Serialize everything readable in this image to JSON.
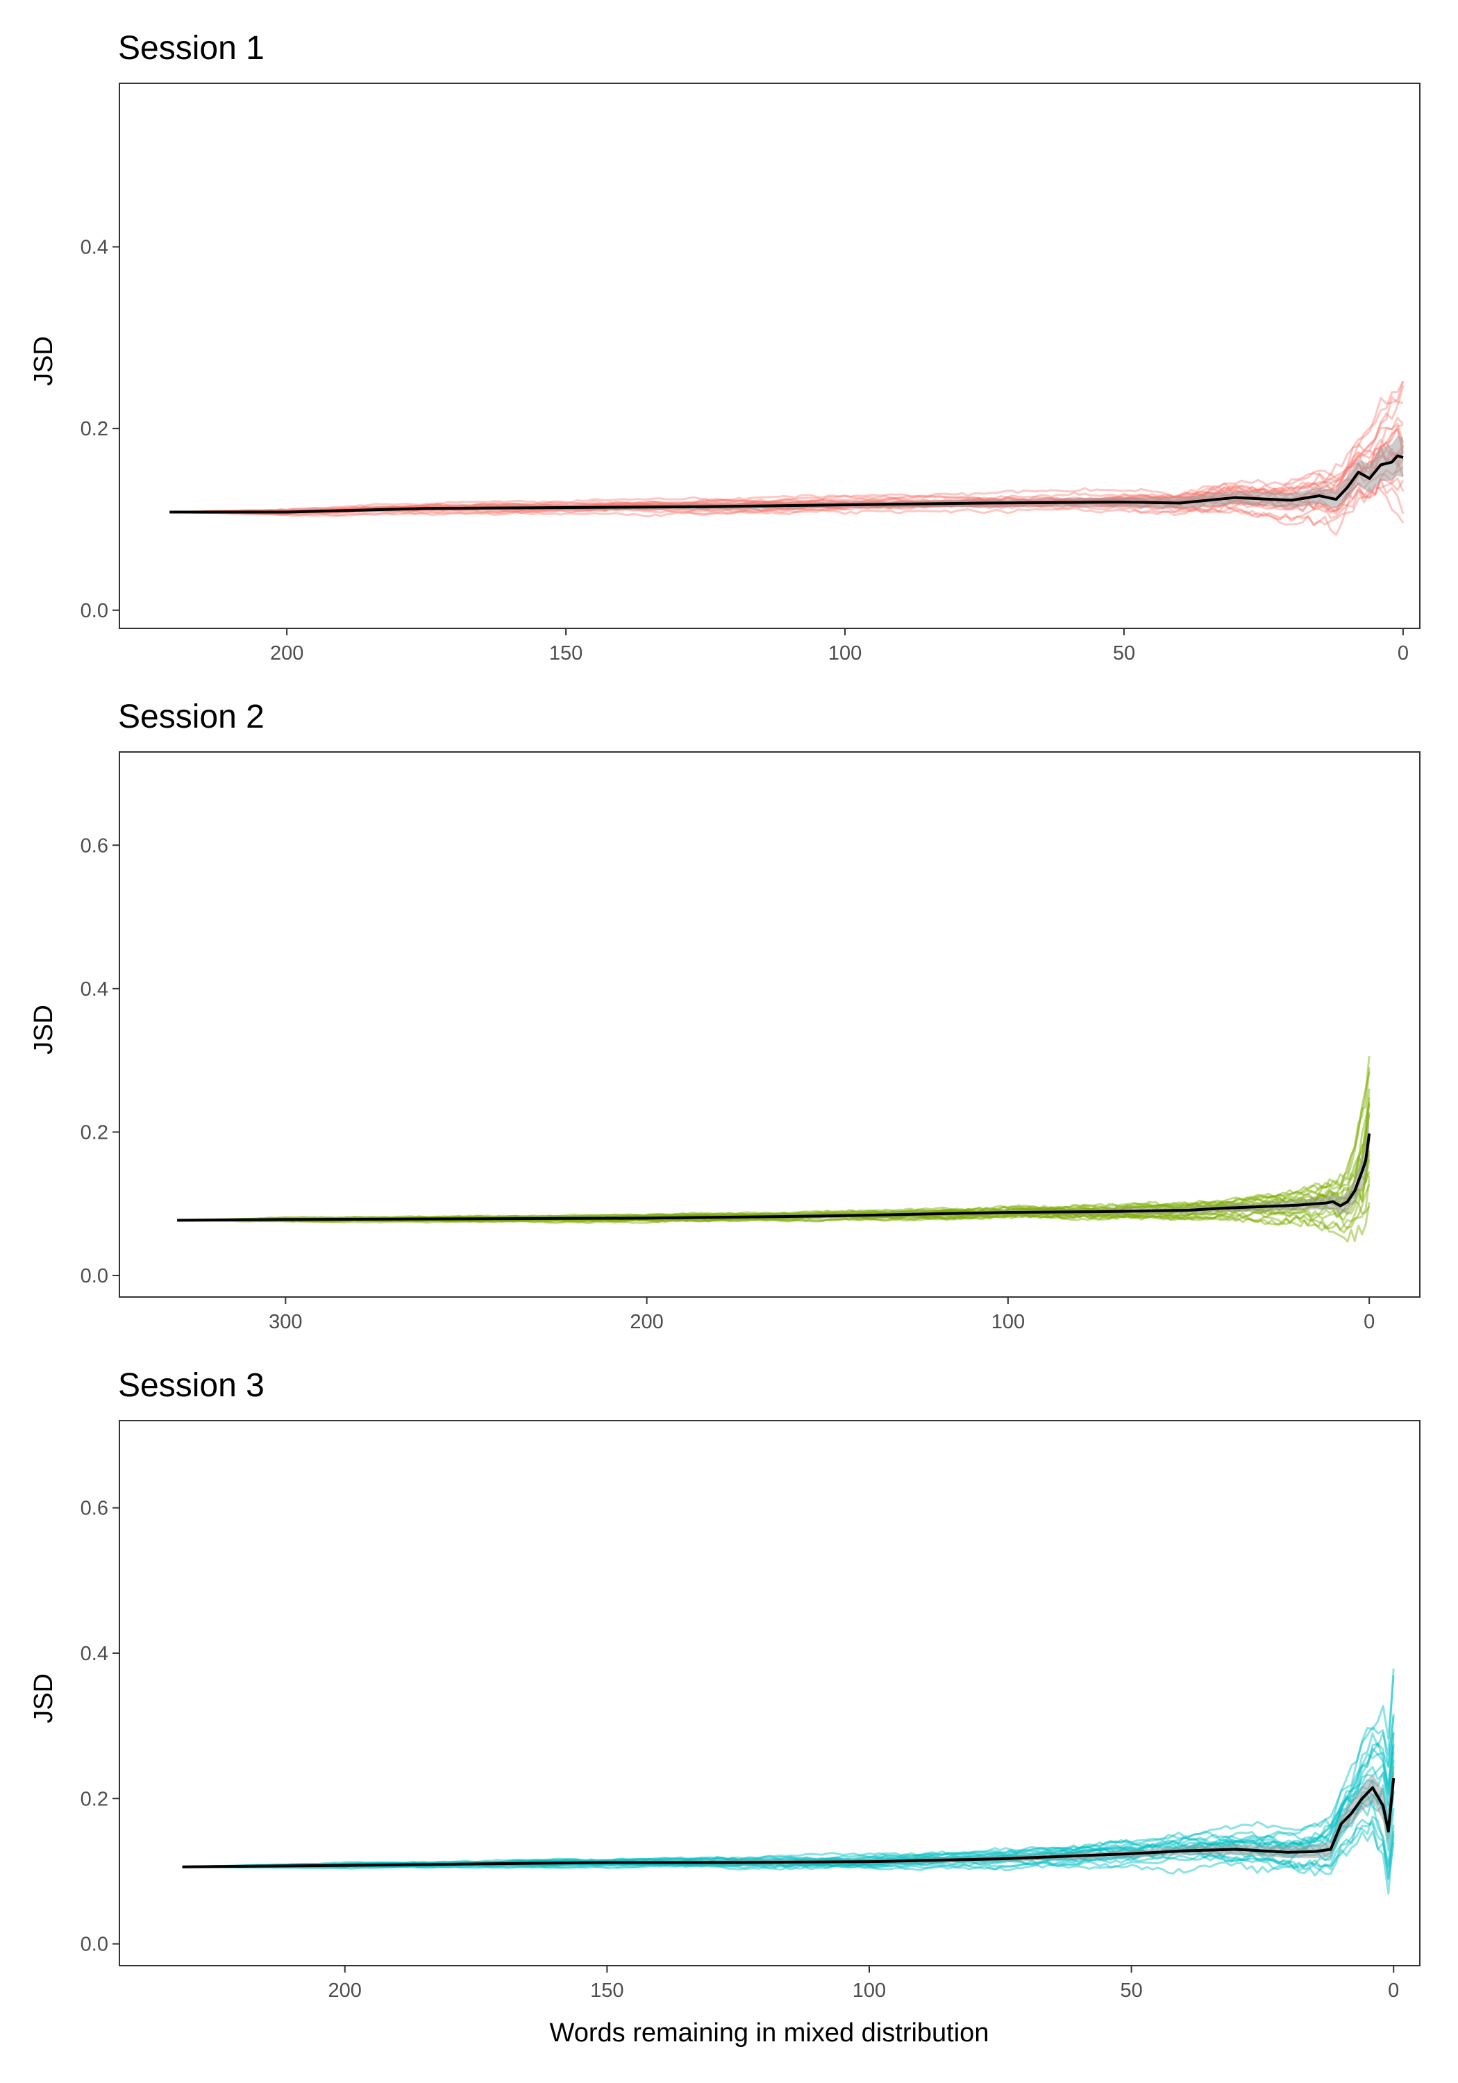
{
  "figure": {
    "xlabel": "Words remaining in mixed distribution"
  },
  "chart_data": [
    {
      "type": "line",
      "title": "Session 1",
      "xlabel": "Words remaining in mixed distribution",
      "ylabel": "JSD",
      "x_reversed": true,
      "xlim": [
        230,
        -3
      ],
      "ylim": [
        -0.02,
        0.58
      ],
      "x_ticks": [
        200,
        150,
        100,
        50,
        0
      ],
      "y_ticks": [
        0.0,
        0.2,
        0.4
      ],
      "y_tick_labels": [
        "0.0",
        "0.2",
        "0.4"
      ],
      "n_words": 221,
      "individual_color": "#F8766D",
      "individual_opacity": 0.4,
      "mean_color": "#000000",
      "ribbon_color": "#999999",
      "grid": false,
      "legend": "none",
      "mean_series": {
        "name": "",
        "x": [
          221,
          200,
          175,
          150,
          125,
          100,
          75,
          50,
          40,
          30,
          20,
          15,
          12,
          10,
          8,
          6,
          4,
          2,
          1,
          0
        ],
        "y": [
          0.108,
          0.108,
          0.112,
          0.113,
          0.114,
          0.116,
          0.118,
          0.119,
          0.118,
          0.124,
          0.121,
          0.126,
          0.122,
          0.135,
          0.152,
          0.145,
          0.16,
          0.163,
          0.17,
          0.168
        ],
        "ribbon_half_width": [
          0.0,
          0.001,
          0.002,
          0.002,
          0.003,
          0.003,
          0.004,
          0.005,
          0.006,
          0.007,
          0.008,
          0.009,
          0.01,
          0.012,
          0.014,
          0.016,
          0.018,
          0.02,
          0.022,
          0.022
        ]
      },
      "individual_series": {
        "count": 20,
        "x": [
          221,
          200,
          175,
          150,
          125,
          100,
          75,
          50,
          40,
          30,
          20,
          15,
          10,
          7,
          5,
          3,
          2,
          1,
          0
        ],
        "spread_multiplier": [
          0.0,
          0.12,
          0.18,
          0.22,
          0.26,
          0.3,
          0.33,
          0.36,
          0.5,
          0.7,
          1.0,
          1.2,
          1.6,
          1.8,
          2.1,
          2.5,
          2.8,
          3.1,
          3.4
        ],
        "offsets": [
          -0.55,
          0.62,
          -0.3,
          0.18,
          -0.75,
          0.48,
          -0.12,
          0.33,
          -0.42,
          0.8,
          -0.05,
          0.25,
          -0.65,
          0.55,
          0.05,
          -0.22,
          0.4,
          -0.9,
          0.9,
          0.12
        ],
        "base_amplitude": 0.025
      }
    },
    {
      "type": "line",
      "title": "Session 2",
      "xlabel": "",
      "ylabel": "JSD",
      "x_reversed": true,
      "xlim": [
        346,
        -14
      ],
      "ylim": [
        -0.03,
        0.73
      ],
      "x_ticks": [
        300,
        200,
        100,
        0
      ],
      "y_ticks": [
        0.0,
        0.2,
        0.4,
        0.6
      ],
      "y_tick_labels": [
        "0.0",
        "0.2",
        "0.4",
        "0.6"
      ],
      "n_words": 330,
      "individual_color": "#7CAE00",
      "individual_opacity": 0.45,
      "mean_color": "#000000",
      "ribbon_color": "#999999",
      "grid": false,
      "legend": "none",
      "mean_series": {
        "name": "",
        "x": [
          330,
          300,
          250,
          200,
          150,
          100,
          75,
          50,
          40,
          30,
          20,
          15,
          12,
          10,
          8,
          6,
          4,
          2,
          1,
          0
        ],
        "y": [
          0.077,
          0.078,
          0.079,
          0.08,
          0.083,
          0.088,
          0.089,
          0.091,
          0.094,
          0.096,
          0.098,
          0.1,
          0.101,
          0.103,
          0.097,
          0.103,
          0.118,
          0.145,
          0.16,
          0.198
        ],
        "ribbon_half_width": [
          0.0,
          0.001,
          0.002,
          0.002,
          0.003,
          0.003,
          0.004,
          0.005,
          0.005,
          0.006,
          0.007,
          0.008,
          0.009,
          0.01,
          0.012,
          0.014,
          0.016,
          0.02,
          0.022,
          0.024
        ]
      },
      "individual_series": {
        "count": 20,
        "x": [
          330,
          300,
          250,
          200,
          150,
          100,
          75,
          50,
          40,
          30,
          20,
          15,
          10,
          7,
          5,
          3,
          2,
          1,
          0
        ],
        "spread_multiplier": [
          0.0,
          0.1,
          0.14,
          0.18,
          0.24,
          0.3,
          0.36,
          0.45,
          0.55,
          0.7,
          0.95,
          1.1,
          1.3,
          1.6,
          2.0,
          2.6,
          3.2,
          3.8,
          4.4
        ],
        "offsets": [
          -0.55,
          0.62,
          -0.3,
          0.18,
          -0.75,
          0.48,
          -0.12,
          0.33,
          -0.42,
          0.8,
          -0.05,
          0.25,
          -0.65,
          0.55,
          0.05,
          -0.22,
          0.4,
          -0.9,
          0.9,
          0.12
        ],
        "base_amplitude": 0.025
      }
    },
    {
      "type": "line",
      "title": "Session 3",
      "xlabel": "Words remaining in mixed distribution",
      "ylabel": "JSD",
      "x_reversed": true,
      "xlim": [
        243,
        -5
      ],
      "ylim": [
        -0.03,
        0.72
      ],
      "x_ticks": [
        200,
        150,
        100,
        50,
        0
      ],
      "y_ticks": [
        0.0,
        0.2,
        0.4,
        0.6
      ],
      "y_tick_labels": [
        "0.0",
        "0.2",
        "0.4",
        "0.6"
      ],
      "n_words": 231,
      "individual_color": "#00BFC4",
      "individual_opacity": 0.45,
      "mean_color": "#000000",
      "ribbon_color": "#999999",
      "grid": false,
      "legend": "none",
      "mean_series": {
        "name": "",
        "x": [
          231,
          200,
          175,
          150,
          125,
          100,
          75,
          50,
          40,
          30,
          20,
          15,
          12,
          10,
          8,
          6,
          4,
          2,
          1,
          0
        ],
        "y": [
          0.106,
          0.108,
          0.11,
          0.112,
          0.112,
          0.113,
          0.117,
          0.124,
          0.128,
          0.13,
          0.126,
          0.127,
          0.13,
          0.165,
          0.18,
          0.2,
          0.215,
          0.19,
          0.155,
          0.228
        ],
        "ribbon_half_width": [
          0.0,
          0.001,
          0.002,
          0.002,
          0.003,
          0.003,
          0.004,
          0.005,
          0.006,
          0.007,
          0.008,
          0.009,
          0.011,
          0.013,
          0.015,
          0.017,
          0.019,
          0.021,
          0.022,
          0.024
        ]
      },
      "individual_series": {
        "count": 20,
        "x": [
          231,
          200,
          175,
          150,
          125,
          100,
          75,
          50,
          40,
          30,
          20,
          15,
          10,
          7,
          5,
          3,
          2,
          1,
          0
        ],
        "spread_multiplier": [
          0.0,
          0.1,
          0.14,
          0.2,
          0.26,
          0.32,
          0.4,
          0.55,
          0.7,
          0.85,
          1.05,
          1.3,
          1.7,
          2.1,
          2.6,
          3.2,
          3.6,
          4.0,
          4.4
        ],
        "offsets": [
          -0.55,
          0.62,
          -0.3,
          0.18,
          -0.75,
          0.48,
          -0.12,
          0.33,
          -0.42,
          0.8,
          -0.05,
          0.25,
          -0.65,
          0.55,
          0.05,
          -0.22,
          0.4,
          -0.9,
          0.9,
          0.12
        ],
        "base_amplitude": 0.028
      }
    }
  ]
}
